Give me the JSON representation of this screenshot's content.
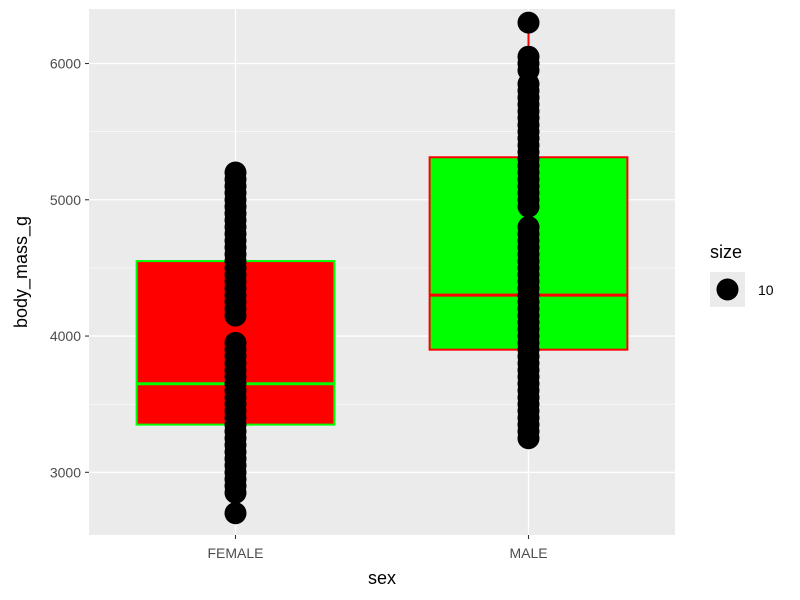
{
  "chart_data": {
    "type": "boxplot",
    "xlabel": "sex",
    "ylabel": "body_mass_g",
    "ylim": [
      2540,
      6400
    ],
    "yticks": [
      3000,
      4000,
      5000,
      6000
    ],
    "categories": [
      "FEMALE",
      "MALE"
    ],
    "grid": true,
    "legend": {
      "title": "size",
      "position": "right",
      "items": [
        {
          "label": "10"
        }
      ]
    },
    "boxes": [
      {
        "category": "FEMALE",
        "q1": 3350,
        "median": 3650,
        "q3": 4550,
        "whisker_low": 2700,
        "whisker_high": 5200,
        "fill": "#ff0000",
        "outline": "#00ff00"
      },
      {
        "category": "MALE",
        "q1": 3900,
        "median": 4300,
        "q3": 5312,
        "whisker_low": 3250,
        "whisker_high": 6300,
        "fill": "#00ff00",
        "outline": "#ff0000"
      }
    ],
    "points": [
      {
        "category": "FEMALE",
        "values": [
          2700,
          2850,
          2900,
          2950,
          3000,
          3050,
          3100,
          3150,
          3200,
          3250,
          3300,
          3350,
          3400,
          3450,
          3500,
          3550,
          3600,
          3650,
          3700,
          3750,
          3800,
          3850,
          3900,
          3950,
          4150,
          4200,
          4250,
          4300,
          4350,
          4400,
          4450,
          4500,
          4550,
          4600,
          4650,
          4700,
          4750,
          4800,
          4850,
          4900,
          4950,
          5000,
          5050,
          5100,
          5150,
          5200
        ]
      },
      {
        "category": "MALE",
        "values": [
          3250,
          3300,
          3350,
          3400,
          3450,
          3500,
          3550,
          3600,
          3650,
          3700,
          3750,
          3800,
          3850,
          3900,
          3950,
          4000,
          4050,
          4100,
          4150,
          4200,
          4250,
          4300,
          4350,
          4400,
          4450,
          4500,
          4550,
          4600,
          4650,
          4700,
          4750,
          4800,
          4950,
          5000,
          5050,
          5100,
          5150,
          5200,
          5250,
          5300,
          5350,
          5400,
          5450,
          5500,
          5550,
          5600,
          5650,
          5700,
          5750,
          5800,
          5850,
          5950,
          6000,
          6050,
          6300
        ]
      }
    ],
    "colors": {
      "panel": "#ebebeb",
      "grid": "#ffffff",
      "point": "#000000"
    }
  }
}
